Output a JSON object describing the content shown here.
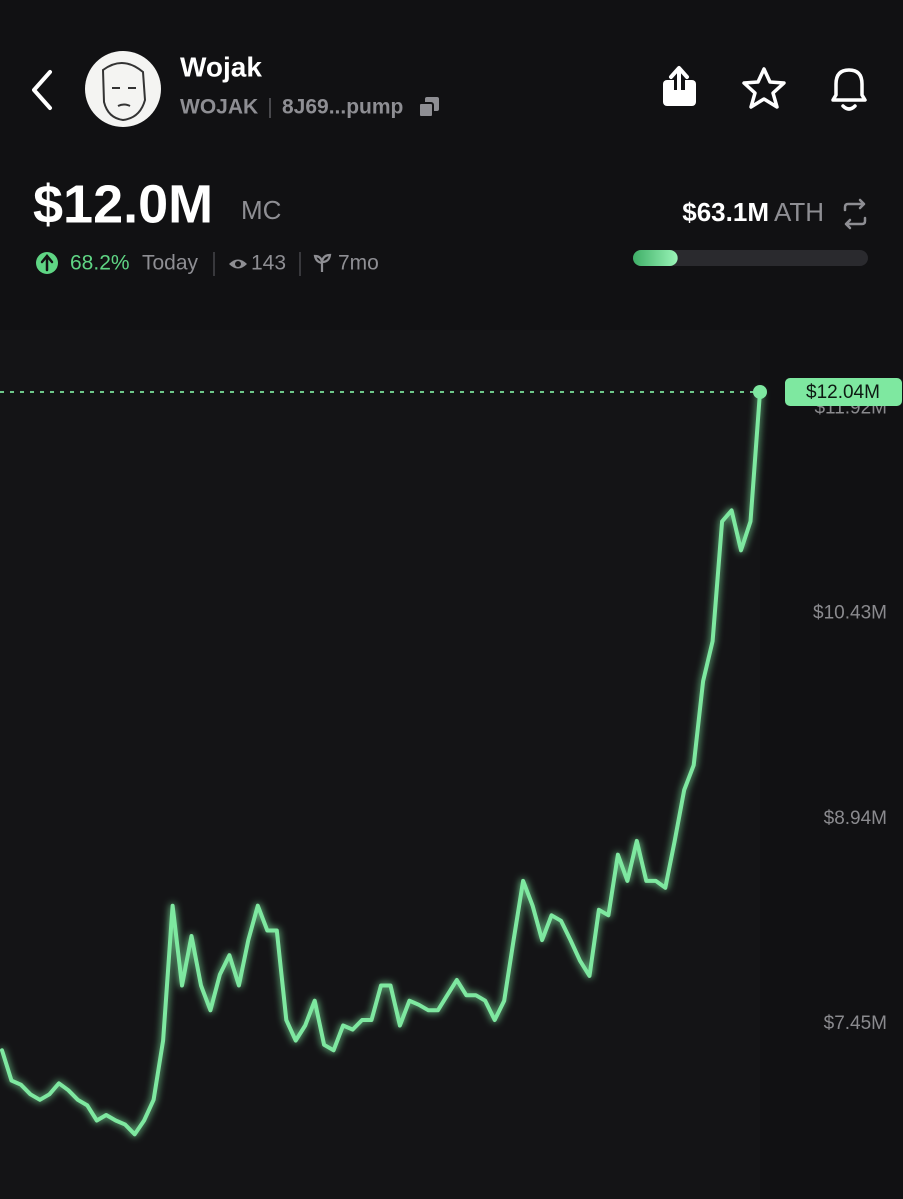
{
  "header": {
    "title": "Wojak",
    "ticker": "WOJAK",
    "address": "8J69...pump",
    "market_cap": {
      "value": 12.0,
      "label": "$12.0M"
    },
    "market_cap_unit": "MC",
    "change": "68.2%",
    "period": "Today",
    "views": "143",
    "age": "7mo",
    "ath": {
      "value": 63.1,
      "label": "$63.1M"
    },
    "ath_label": "ATH"
  },
  "chart_data": {
    "type": "line",
    "color": "#7ee8a0",
    "values": [
      7.26,
      7.04,
      7.01,
      6.94,
      6.9,
      6.94,
      7.02,
      6.97,
      6.9,
      6.86,
      6.75,
      6.79,
      6.75,
      6.72,
      6.65,
      6.75,
      6.9,
      7.33,
      8.31,
      7.73,
      8.09,
      7.73,
      7.55,
      7.81,
      7.95,
      7.73,
      8.06,
      8.31,
      8.13,
      8.13,
      7.48,
      7.33,
      7.44,
      7.62,
      7.3,
      7.26,
      7.44,
      7.41,
      7.48,
      7.48,
      7.73,
      7.73,
      7.44,
      7.62,
      7.59,
      7.55,
      7.55,
      7.66,
      7.77,
      7.66,
      7.66,
      7.62,
      7.48,
      7.62,
      8.06,
      8.49,
      8.31,
      8.06,
      8.24,
      8.2,
      8.06,
      7.91,
      7.8,
      8.28,
      8.24,
      8.68,
      8.49,
      8.78,
      8.49,
      8.49,
      8.44,
      8.78,
      9.15,
      9.33,
      9.94,
      10.23,
      11.1,
      11.18,
      10.89,
      11.1,
      12.04
    ],
    "ylim": [
      6.18,
      12.49
    ],
    "yticks": [
      {
        "value": 7.45,
        "label": "$7.45M"
      },
      {
        "value": 8.94,
        "label": "$8.94M"
      },
      {
        "value": 10.43,
        "label": "$10.43M"
      },
      {
        "value": 11.92,
        "label": "$11.92M"
      }
    ],
    "current": {
      "value": 12.04,
      "label": "$12.04M"
    }
  }
}
